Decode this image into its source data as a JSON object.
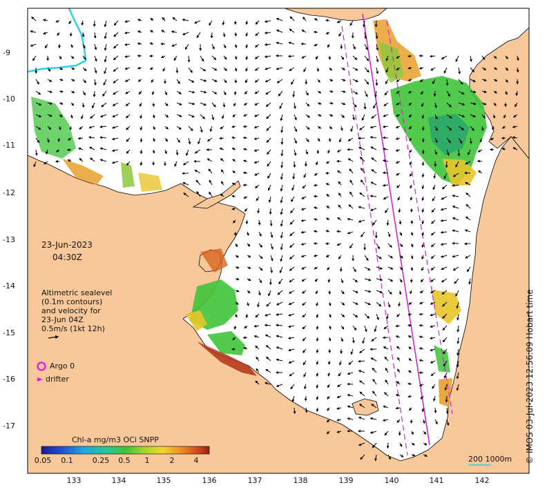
{
  "map": {
    "date": "23-Jun-2023",
    "time": "04:30Z",
    "altimetry_note": [
      "Altimetric sealevel",
      "(0.1m contours)",
      "and velocity for",
      "23-Jun 04Z",
      "0.5m/s (1kt 12h)"
    ],
    "argo_label": "Argo 0",
    "drifter_label": "drifter",
    "colorbar_title": "Chl-a mg/m3 OCi SNPP",
    "colorbar_ticks": [
      "0.05",
      "0.1",
      "0.25",
      "0.5",
      "1",
      "2",
      "4"
    ],
    "scale_label": "200  1000m",
    "copyright": "© IMOS 03-Jul-2023 12:56:09 Hobart time",
    "lat_ticks": [
      "-9",
      "-10",
      "-11",
      "-12",
      "-13",
      "-14",
      "-15",
      "-16",
      "-17"
    ],
    "lon_ticks": [
      "133",
      "134",
      "135",
      "136",
      "137",
      "138",
      "139",
      "140",
      "141",
      "142"
    ],
    "colors": {
      "land": "#f9c89a",
      "coast": "#000000",
      "arrows": "#000000",
      "track": "#d61fd6",
      "cyan_line": "#22d3e6",
      "chl_low": "#1b3fb0",
      "chl_mid": "#2ec43b",
      "chl_high": "#b33218"
    }
  }
}
